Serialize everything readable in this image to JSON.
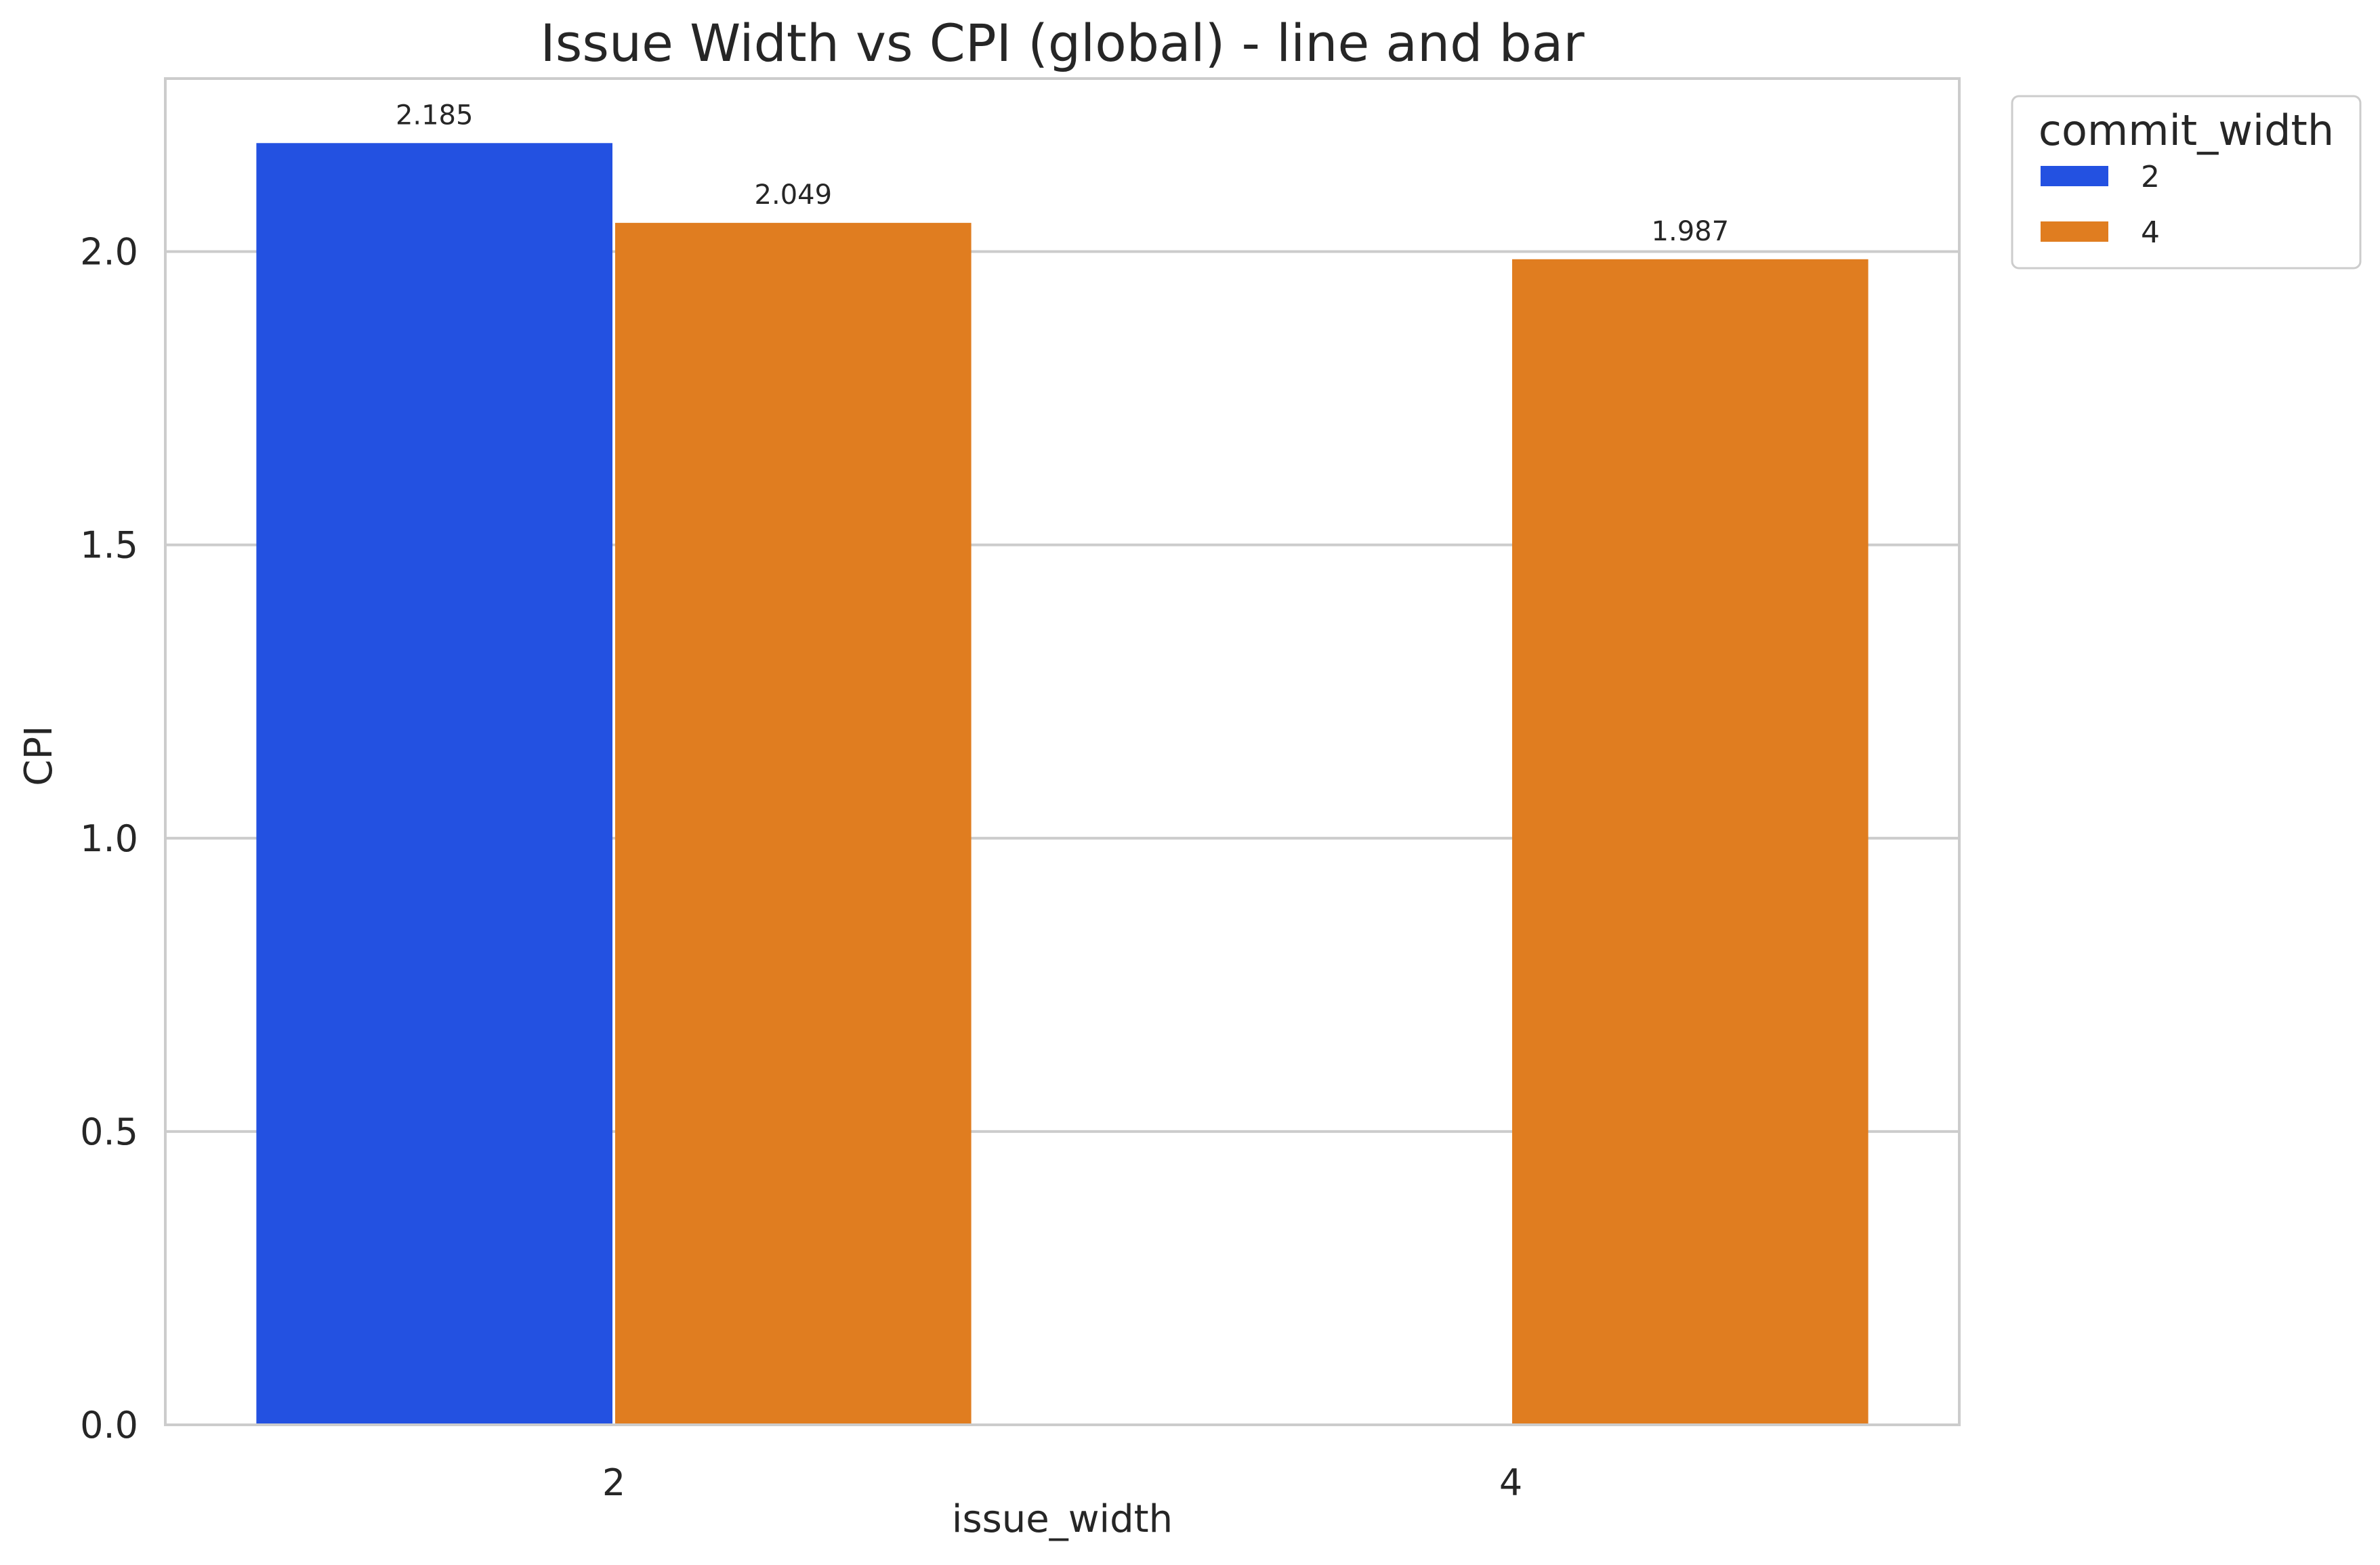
{
  "chart_data": {
    "type": "bar",
    "title": "Issue Width vs CPI (global) - line and bar",
    "xlabel": "issue_width",
    "ylabel": "CPI",
    "categories": [
      "2",
      "4"
    ],
    "yticks": [
      "0.0",
      "0.5",
      "1.0",
      "1.5",
      "2.0"
    ],
    "ylim": [
      0,
      2.295
    ],
    "grid": true,
    "legend": {
      "title": "commit_width",
      "position": "outside-top-right"
    },
    "series": [
      {
        "name": "2",
        "color": "#2351e1",
        "values": [
          2.185,
          null
        ],
        "labels": [
          "2.185",
          ""
        ]
      },
      {
        "name": "4",
        "color": "#e07d20",
        "values": [
          2.049,
          1.987
        ],
        "labels": [
          "2.049",
          "1.987"
        ]
      }
    ]
  }
}
